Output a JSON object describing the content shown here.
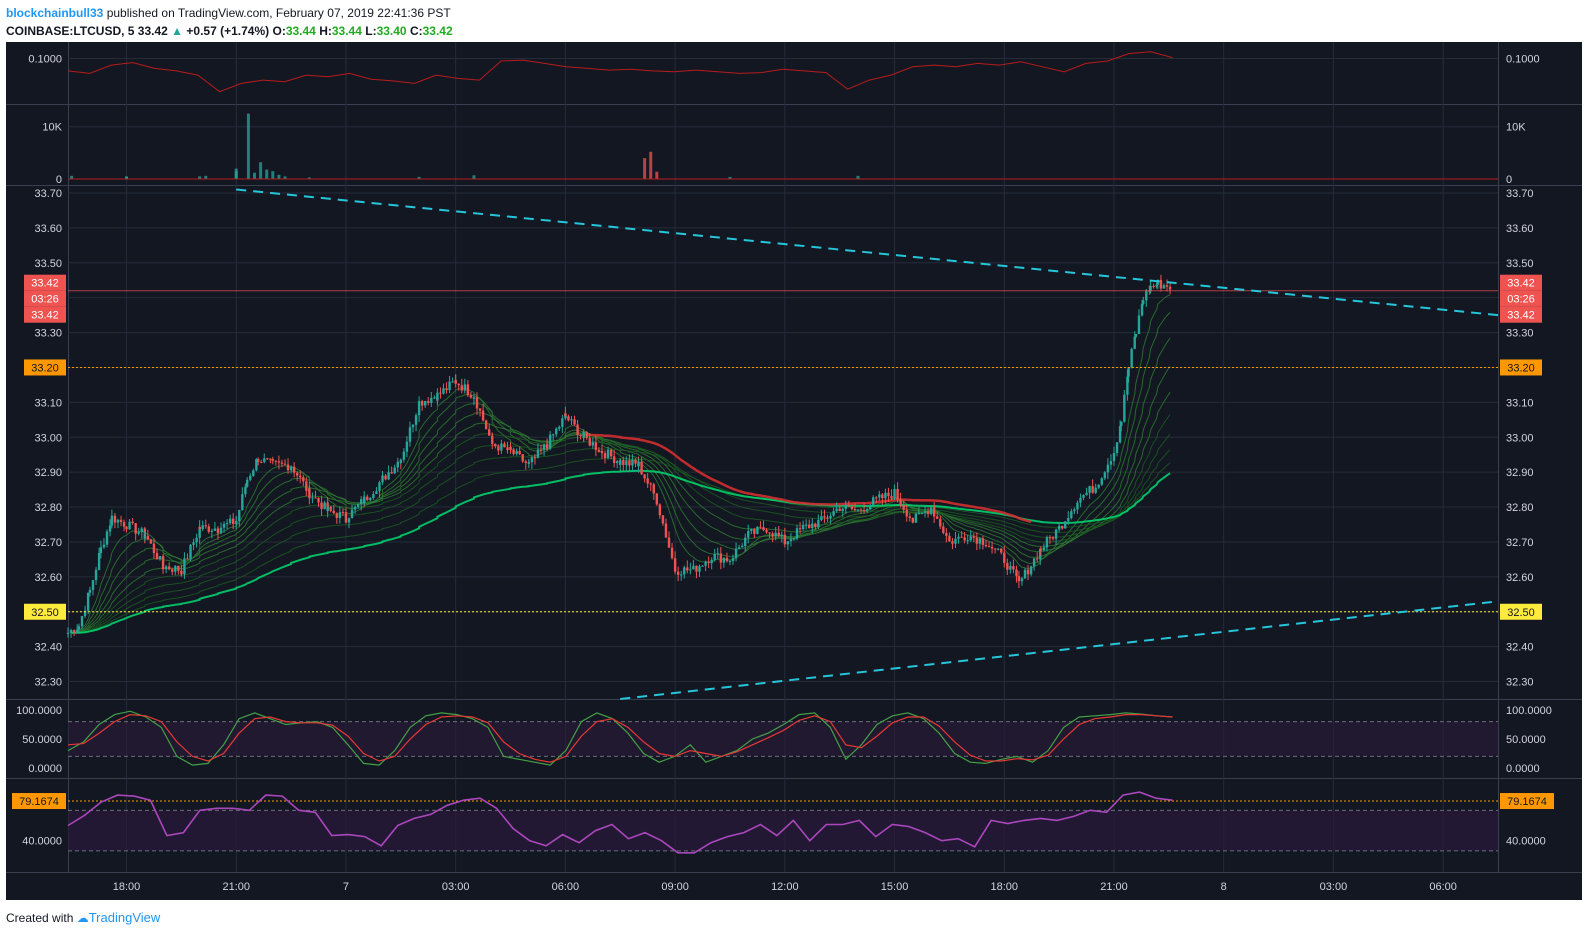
{
  "header": {
    "author": "blockchainbull33",
    "published_text": " published on TradingView.com, February 07, 2019 22:41:36 PST",
    "symbol": "COINBASE:LTCUSD, 5",
    "last": "33.42",
    "change": "+0.57 (+1.74%)",
    "o_label": "O:",
    "o": "33.44",
    "h_label": "H:",
    "h": "33.44",
    "l_label": "L:",
    "l": "33.40",
    "c_label": "C:",
    "c": "33.42"
  },
  "footer": {
    "created_with": "Created with",
    "brand": "TradingView"
  },
  "colors": {
    "background": "#131722",
    "grid": "#262b3a",
    "up": "#26a69a",
    "down": "#ef5350",
    "trend": "#26c6da",
    "level_orange": "#ff9800",
    "level_yellow": "#ffeb3b",
    "rsi": "#ab47bc"
  },
  "chart_data": [
    {
      "type": "line",
      "panel": "top-indicator",
      "y_tick_labels": [
        "0.1000"
      ],
      "series": [
        {
          "values": [
            0.085,
            0.082,
            0.092,
            0.095,
            0.088,
            0.085,
            0.08,
            0.06,
            0.07,
            0.074,
            0.072,
            0.08,
            0.078,
            0.082,
            0.075,
            0.073,
            0.07,
            0.08,
            0.076,
            0.074,
            0.097,
            0.098,
            0.094,
            0.09,
            0.088,
            0.086,
            0.087,
            0.085,
            0.084,
            0.086,
            0.084,
            0.082,
            0.083,
            0.087,
            0.085,
            0.083,
            0.063,
            0.074,
            0.08,
            0.09,
            0.092,
            0.09,
            0.094,
            0.092,
            0.096,
            0.09,
            0.084,
            0.094,
            0.097,
            0.106,
            0.108,
            0.101
          ]
        }
      ]
    },
    {
      "type": "bar",
      "panel": "volume",
      "y_tick_labels": [
        "10K",
        "0"
      ],
      "x": [
        "16:30",
        "18:00",
        "20:00",
        "21:00",
        "23:00",
        "02:00",
        "03:30",
        "08:10",
        "08:20",
        "08:30",
        "10:30",
        "14:00",
        "18:00",
        "20:10",
        "21:00",
        "21:20",
        "21:30",
        "21:40",
        "21:50",
        "22:00",
        "22:10",
        "22:20"
      ],
      "values": [
        600,
        400,
        500,
        1500,
        300,
        400,
        700,
        4000,
        5200,
        1400,
        400,
        600,
        500,
        600,
        2000,
        12500,
        1200,
        3200,
        1800,
        1500,
        800,
        500
      ]
    },
    {
      "type": "line",
      "panel": "price",
      "title": "",
      "ylim": [
        32.25,
        33.72
      ],
      "y_tick_labels": [
        "33.70",
        "33.60",
        "33.50",
        "33.40",
        "33.30",
        "33.20",
        "33.10",
        "33.00",
        "32.90",
        "32.80",
        "32.70",
        "32.60",
        "32.50",
        "32.40",
        "32.30"
      ],
      "x_tick_labels": [
        "18:00",
        "21:00",
        "7",
        "03:00",
        "06:00",
        "09:00",
        "12:00",
        "15:00",
        "18:00",
        "21:00",
        "8",
        "03:00",
        "06:00"
      ],
      "x_ticks_hours": [
        18,
        21,
        24,
        27,
        30,
        33,
        36,
        39,
        42,
        45,
        48,
        51,
        54
      ],
      "x_range_hours": [
        16.4,
        55.5
      ],
      "series": [
        {
          "values": [
            [
              16.4,
              32.44
            ],
            [
              16.7,
              32.46
            ],
            [
              17.0,
              32.56
            ],
            [
              17.3,
              32.68
            ],
            [
              17.6,
              32.77
            ],
            [
              18.0,
              32.75
            ],
            [
              18.5,
              32.72
            ],
            [
              19.0,
              32.63
            ],
            [
              19.5,
              32.62
            ],
            [
              20.0,
              32.74
            ],
            [
              20.5,
              32.74
            ],
            [
              21.0,
              32.76
            ],
            [
              21.3,
              32.88
            ],
            [
              21.6,
              32.94
            ],
            [
              22.0,
              32.92
            ],
            [
              22.5,
              32.92
            ],
            [
              23.0,
              32.84
            ],
            [
              23.5,
              32.79
            ],
            [
              24.0,
              32.77
            ],
            [
              24.5,
              32.82
            ],
            [
              25.0,
              32.88
            ],
            [
              25.5,
              32.94
            ],
            [
              26.0,
              33.1
            ],
            [
              26.5,
              33.12
            ],
            [
              27.0,
              33.16
            ],
            [
              27.5,
              33.12
            ],
            [
              28.0,
              32.98
            ],
            [
              28.5,
              32.96
            ],
            [
              29.0,
              32.92
            ],
            [
              29.5,
              32.98
            ],
            [
              30.0,
              33.06
            ],
            [
              30.5,
              33.0
            ],
            [
              31.0,
              32.96
            ],
            [
              31.5,
              32.93
            ],
            [
              32.0,
              32.92
            ],
            [
              32.5,
              32.82
            ],
            [
              33.0,
              32.62
            ],
            [
              33.5,
              32.62
            ],
            [
              34.0,
              32.66
            ],
            [
              34.5,
              32.65
            ],
            [
              35.0,
              32.72
            ],
            [
              35.5,
              32.74
            ],
            [
              36.0,
              32.7
            ],
            [
              36.5,
              32.74
            ],
            [
              37.0,
              32.76
            ],
            [
              37.5,
              32.8
            ],
            [
              38.0,
              32.79
            ],
            [
              38.5,
              32.82
            ],
            [
              39.0,
              32.84
            ],
            [
              39.5,
              32.76
            ],
            [
              40.0,
              32.8
            ],
            [
              40.5,
              32.7
            ],
            [
              41.0,
              32.72
            ],
            [
              41.5,
              32.7
            ],
            [
              42.0,
              32.65
            ],
            [
              42.4,
              32.58
            ],
            [
              43.0,
              32.68
            ],
            [
              43.5,
              32.74
            ],
            [
              44.0,
              32.82
            ],
            [
              44.5,
              32.86
            ],
            [
              45.0,
              32.96
            ],
            [
              45.2,
              33.05
            ],
            [
              45.4,
              33.2
            ],
            [
              45.6,
              33.3
            ],
            [
              45.8,
              33.4
            ],
            [
              46.0,
              33.43
            ],
            [
              46.2,
              33.44
            ],
            [
              46.6,
              33.43
            ]
          ]
        }
      ],
      "price_labels": {
        "last": "33.42",
        "countdown": "03:26",
        "orange": "33.20",
        "yellow": "32.50"
      },
      "levels": {
        "orange": 33.2,
        "yellow": 32.5,
        "last": 33.42
      },
      "trendlines": [
        {
          "from": [
            21.0,
            33.71
          ],
          "to": [
            55.5,
            33.35
          ]
        },
        {
          "from": [
            31.5,
            32.25
          ],
          "to": [
            55.5,
            32.53
          ]
        }
      ]
    },
    {
      "type": "line",
      "panel": "stochastic",
      "ylim": [
        0,
        100
      ],
      "y_tick_labels": [
        "100.0000",
        "50.0000",
        "0.0000"
      ],
      "series": [
        {
          "values": [
            30,
            45,
            75,
            92,
            98,
            88,
            70,
            20,
            5,
            8,
            40,
            85,
            95,
            85,
            75,
            78,
            80,
            70,
            40,
            8,
            5,
            30,
            70,
            90,
            95,
            92,
            85,
            70,
            20,
            15,
            10,
            5,
            30,
            80,
            95,
            85,
            60,
            25,
            10,
            20,
            40,
            10,
            20,
            30,
            50,
            60,
            75,
            92,
            95,
            70,
            15,
            40,
            75,
            90,
            95,
            85,
            60,
            25,
            10,
            8,
            15,
            20,
            10,
            30,
            70,
            88,
            90,
            92,
            95,
            93,
            90,
            88
          ]
        },
        {
          "values": [
            40,
            42,
            60,
            80,
            92,
            90,
            80,
            45,
            20,
            12,
            25,
            60,
            85,
            88,
            80,
            78,
            78,
            74,
            55,
            25,
            12,
            20,
            50,
            75,
            88,
            90,
            88,
            78,
            45,
            25,
            15,
            10,
            20,
            55,
            80,
            85,
            70,
            45,
            25,
            20,
            30,
            25,
            20,
            28,
            40,
            52,
            65,
            82,
            90,
            80,
            40,
            35,
            55,
            78,
            88,
            88,
            72,
            45,
            22,
            12,
            12,
            16,
            14,
            22,
            50,
            75,
            85,
            88,
            92,
            92,
            90,
            88
          ]
        }
      ]
    },
    {
      "type": "line",
      "panel": "rsi",
      "y_tick_labels": [
        "79.1674",
        "40.0000"
      ],
      "series": [
        {
          "values": [
            55,
            65,
            78,
            85,
            84,
            80,
            45,
            48,
            70,
            72,
            72,
            70,
            85,
            84,
            70,
            68,
            45,
            46,
            44,
            35,
            55,
            62,
            66,
            75,
            80,
            82,
            72,
            52,
            40,
            35,
            46,
            38,
            50,
            56,
            42,
            48,
            40,
            28,
            28,
            38,
            44,
            48,
            56,
            45,
            60,
            40,
            56,
            56,
            60,
            44,
            56,
            54,
            48,
            40,
            42,
            34,
            60,
            57,
            60,
            62,
            60,
            64,
            70,
            68,
            85,
            88,
            82,
            80
          ]
        }
      ],
      "levels": {
        "orange": 79.17
      },
      "price_label": "79.1674"
    }
  ]
}
